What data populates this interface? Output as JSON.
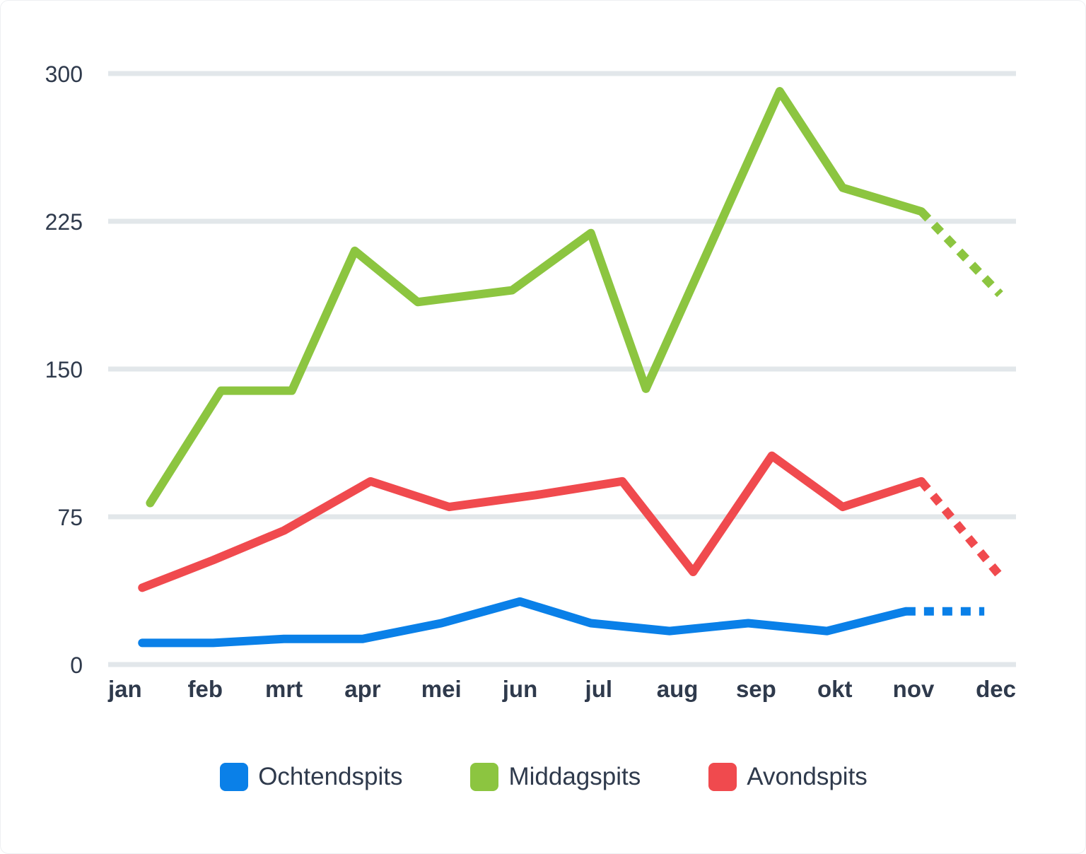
{
  "chart_data": {
    "type": "line",
    "categories": [
      "jan",
      "feb",
      "mrt",
      "apr",
      "mei",
      "jun",
      "jul",
      "aug",
      "sep",
      "okt",
      "nov",
      "dec"
    ],
    "yticks": [
      "0",
      "75",
      "150",
      "225",
      "300"
    ],
    "ylim": [
      0,
      300
    ],
    "grid": true,
    "legend_position": "bottom",
    "forecast_from_index": 10,
    "series": [
      {
        "name": "Ochtendspits",
        "color": "#0a80e8",
        "points": [
          {
            "x": 0.2,
            "y": 11
          },
          {
            "x": 1.1,
            "y": 11
          },
          {
            "x": 2.0,
            "y": 13
          },
          {
            "x": 3.0,
            "y": 13
          },
          {
            "x": 4.0,
            "y": 21
          },
          {
            "x": 5.0,
            "y": 32
          },
          {
            "x": 5.9,
            "y": 21
          },
          {
            "x": 6.9,
            "y": 17
          },
          {
            "x": 7.9,
            "y": 21
          },
          {
            "x": 8.9,
            "y": 17
          },
          {
            "x": 9.9,
            "y": 27
          },
          {
            "x": 10.9,
            "y": 27
          }
        ]
      },
      {
        "name": "Middagspits",
        "color": "#8cc540",
        "points": [
          {
            "x": 0.3,
            "y": 82
          },
          {
            "x": 1.2,
            "y": 139
          },
          {
            "x": 2.1,
            "y": 139
          },
          {
            "x": 2.9,
            "y": 210
          },
          {
            "x": 3.7,
            "y": 184
          },
          {
            "x": 4.9,
            "y": 190
          },
          {
            "x": 5.9,
            "y": 219
          },
          {
            "x": 6.6,
            "y": 140
          },
          {
            "x": 8.3,
            "y": 291
          },
          {
            "x": 9.1,
            "y": 242
          },
          {
            "x": 10.1,
            "y": 230
          },
          {
            "x": 11.1,
            "y": 188
          }
        ]
      },
      {
        "name": "Avondspits",
        "color": "#f04a4e",
        "points": [
          {
            "x": 0.2,
            "y": 39
          },
          {
            "x": 1.1,
            "y": 53
          },
          {
            "x": 2.0,
            "y": 68
          },
          {
            "x": 3.1,
            "y": 93
          },
          {
            "x": 4.1,
            "y": 80
          },
          {
            "x": 5.2,
            "y": 86
          },
          {
            "x": 6.3,
            "y": 93
          },
          {
            "x": 7.2,
            "y": 47
          },
          {
            "x": 8.2,
            "y": 106
          },
          {
            "x": 9.1,
            "y": 80
          },
          {
            "x": 10.1,
            "y": 93
          },
          {
            "x": 11.1,
            "y": 45
          }
        ]
      }
    ]
  }
}
